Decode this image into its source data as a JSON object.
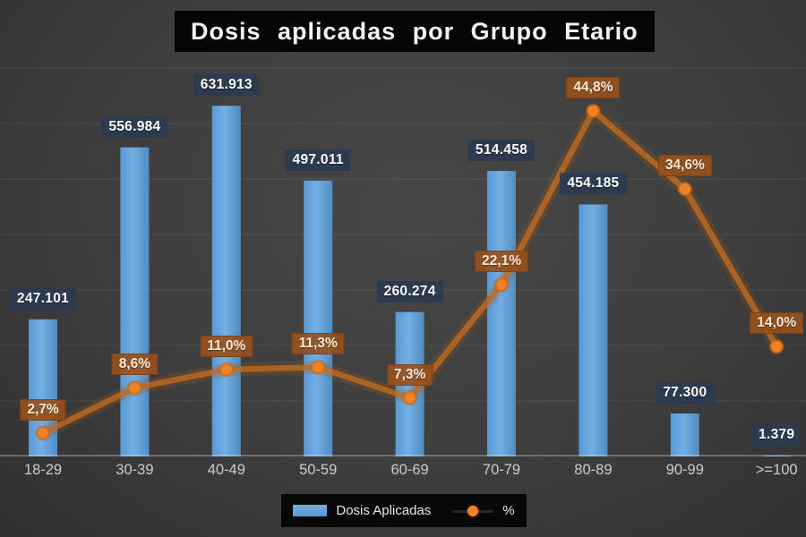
{
  "title": "Dosis aplicadas por Grupo Etario",
  "chart_data": {
    "type": "bar+line-combo",
    "title": "Dosis aplicadas por Grupo Etario",
    "categories": [
      "18-29",
      "30-39",
      "40-49",
      "50-59",
      "60-69",
      "70-79",
      "80-89",
      "90-99",
      ">=100"
    ],
    "series": [
      {
        "name": "Dosis Aplicadas",
        "type": "bar",
        "values": [
          247101,
          556984,
          631913,
          497011,
          260274,
          514458,
          454185,
          77300,
          1379
        ],
        "labels": [
          "247.101",
          "556.984",
          "631.913",
          "497.011",
          "260.274",
          "514.458",
          "454.185",
          "77.300",
          "1.379"
        ]
      },
      {
        "name": "%",
        "type": "line",
        "values": [
          2.7,
          8.6,
          11.0,
          11.3,
          7.3,
          22.1,
          44.8,
          34.6,
          14.0
        ],
        "labels": [
          "2,7%",
          "8,6%",
          "11,0%",
          "11,3%",
          "7,3%",
          "22,1%",
          "44,8%",
          "34,6%",
          "14,0%"
        ]
      }
    ],
    "primary_axis": {
      "min": 0,
      "max": 700000,
      "gridline_step": 100000,
      "tick_labels_visible": false
    },
    "secondary_axis": {
      "min": 0,
      "max": 50,
      "tick_labels_visible": false
    },
    "grid": "horizontal",
    "legend_position": "bottom"
  },
  "colors": {
    "background": "#3e3e3e",
    "bar_fill": "#5b9bd5",
    "bar_fill_light": "#74aee2",
    "line_stroke": "#c06a1f",
    "marker_fill": "#f08223",
    "value_label_bg": "#2b3b4f",
    "pct_label_bg": "#96501c",
    "gridline": "#4d4d4d",
    "axis_line": "#9a9a9a",
    "title_bg": "#050505",
    "legend_bg": "#070707"
  }
}
